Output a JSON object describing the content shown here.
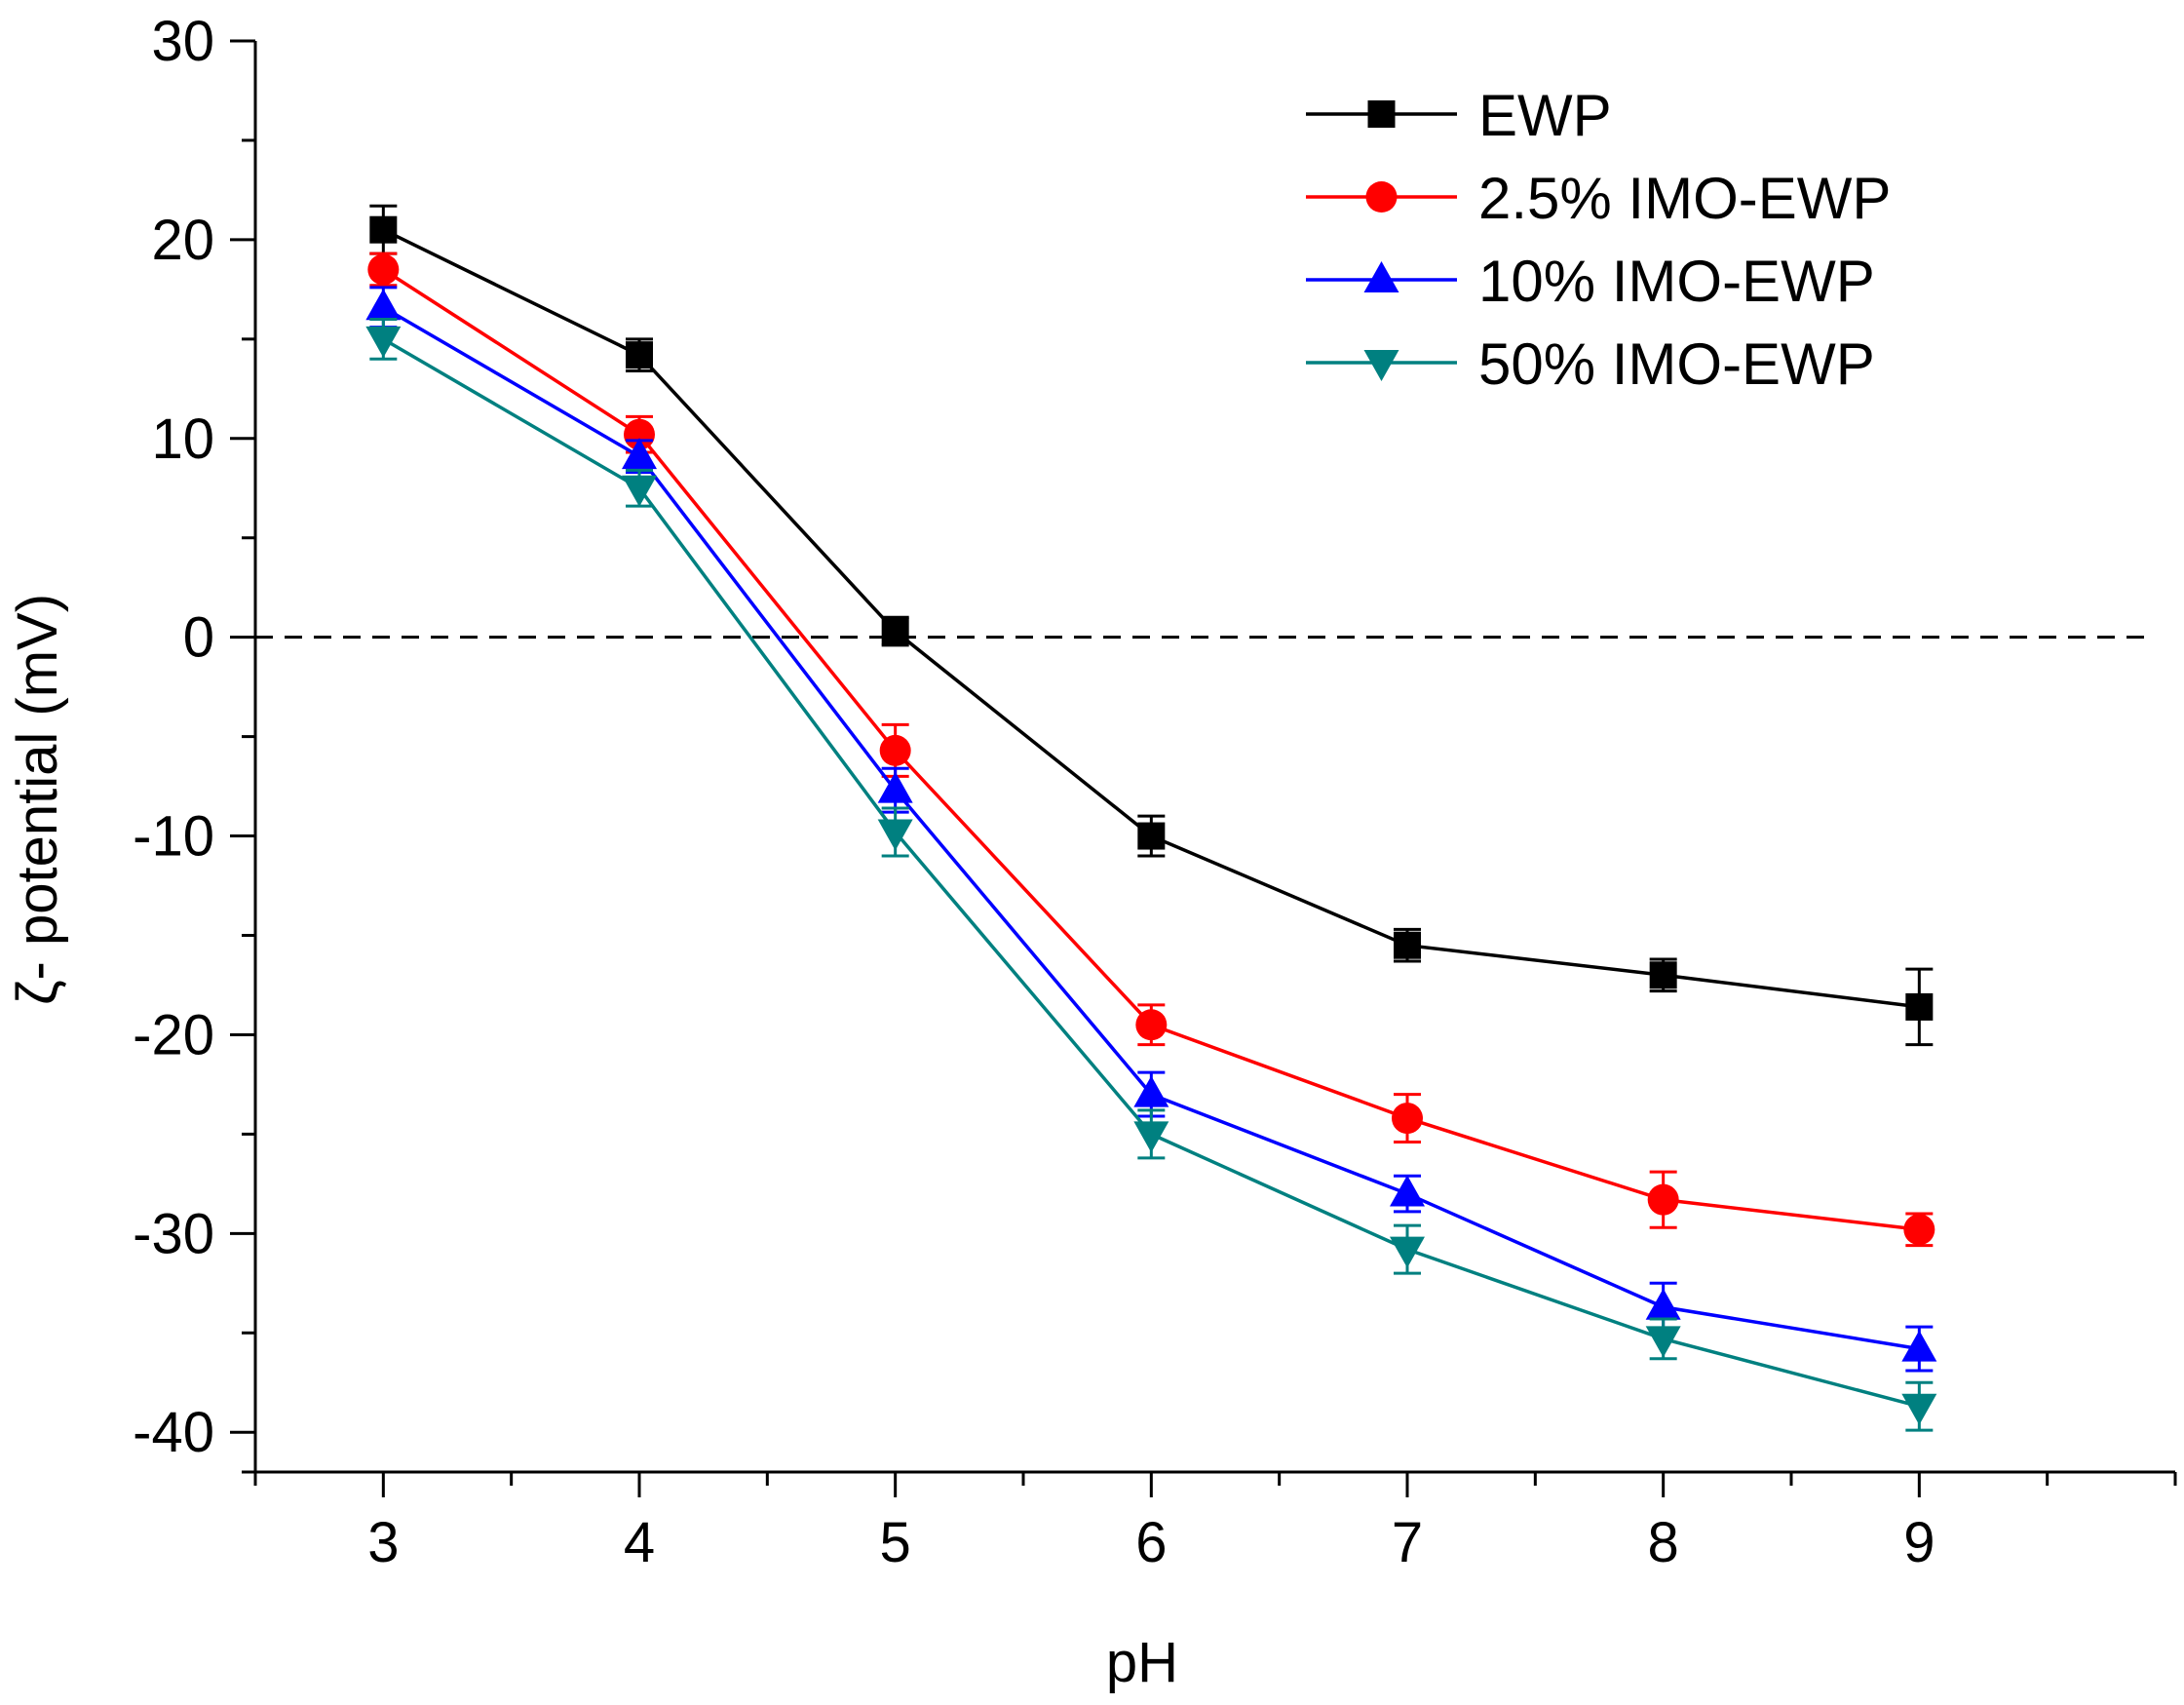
{
  "chart_data": {
    "type": "line",
    "title": "",
    "xlabel": "pH",
    "ylabel": "ζ- potential (mV)",
    "x": [
      3,
      4,
      5,
      6,
      7,
      8,
      9
    ],
    "xlim": [
      2.5,
      10
    ],
    "ylim": [
      -42,
      30
    ],
    "x_ticks": [
      3,
      4,
      5,
      6,
      7,
      8,
      9
    ],
    "y_ticks": [
      -40,
      -30,
      -20,
      -10,
      0,
      10,
      20,
      30
    ],
    "x_tick_labels": [
      "3",
      "4",
      "5",
      "6",
      "7",
      "8",
      "9"
    ],
    "y_tick_labels": [
      "-40",
      "-30",
      "-20",
      "-10",
      "0",
      "10",
      "20",
      "30"
    ],
    "reference_line": {
      "y": 0,
      "style": "dashed",
      "x_range": [
        2.5,
        9.9
      ]
    },
    "grid": false,
    "legend": "top-right",
    "series": [
      {
        "name": "EWP",
        "color": "#000000",
        "marker": "square",
        "values": [
          20.5,
          14.2,
          0.3,
          -10.0,
          -15.5,
          -17.0,
          -18.6
        ],
        "errors": [
          1.2,
          0.8,
          0.7,
          1.0,
          0.8,
          0.8,
          1.9
        ]
      },
      {
        "name": "2.5% IMO-EWP",
        "color": "#ff0000",
        "marker": "circle",
        "values": [
          18.5,
          10.2,
          -5.7,
          -19.5,
          -24.2,
          -28.3,
          -29.8
        ],
        "errors": [
          0.8,
          0.9,
          1.3,
          1.0,
          1.2,
          1.4,
          0.8
        ]
      },
      {
        "name": "10% IMO-EWP",
        "color": "#0000ff",
        "marker": "triangle-up",
        "values": [
          16.6,
          9.1,
          -7.7,
          -23.0,
          -28.0,
          -33.7,
          -35.8
        ],
        "errors": [
          1.0,
          0.8,
          1.1,
          1.1,
          0.9,
          1.2,
          1.1
        ]
      },
      {
        "name": "50% IMO-EWP",
        "color": "#008080",
        "marker": "triangle-down",
        "values": [
          15.0,
          7.5,
          -9.8,
          -25.0,
          -30.8,
          -35.3,
          -38.7
        ],
        "errors": [
          1.0,
          0.9,
          1.2,
          1.2,
          1.2,
          1.0,
          1.2
        ]
      }
    ]
  }
}
